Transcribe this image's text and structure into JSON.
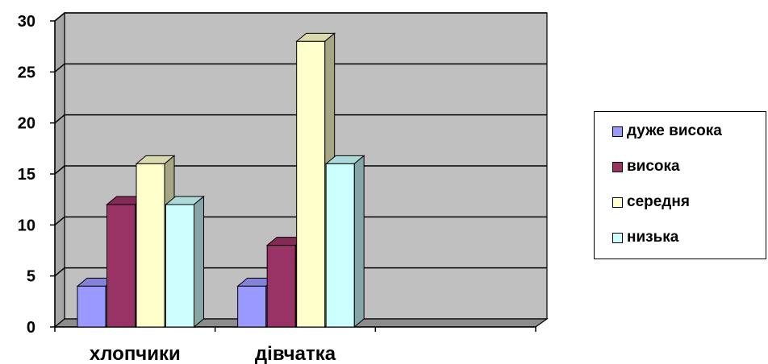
{
  "chart_data": {
    "type": "bar",
    "categories": [
      "хлопчики",
      "дівчатка",
      ""
    ],
    "series": [
      {
        "name": "дуже висока",
        "values": [
          4,
          4,
          null
        ],
        "color": "#9999ff"
      },
      {
        "name": "висока",
        "values": [
          12,
          8,
          null
        ],
        "color": "#993366"
      },
      {
        "name": "середня",
        "values": [
          16,
          28,
          null
        ],
        "color": "#ffffcc"
      },
      {
        "name": "низька",
        "values": [
          12,
          16,
          null
        ],
        "color": "#ccffff"
      }
    ],
    "yticks": [
      "0",
      "5",
      "10",
      "15",
      "20",
      "25",
      "30"
    ],
    "ylim": [
      0,
      30
    ],
    "grid": true,
    "legend_position": "right",
    "wall_color": "#c0c0c0",
    "title": "",
    "xlabel": "",
    "ylabel": ""
  }
}
